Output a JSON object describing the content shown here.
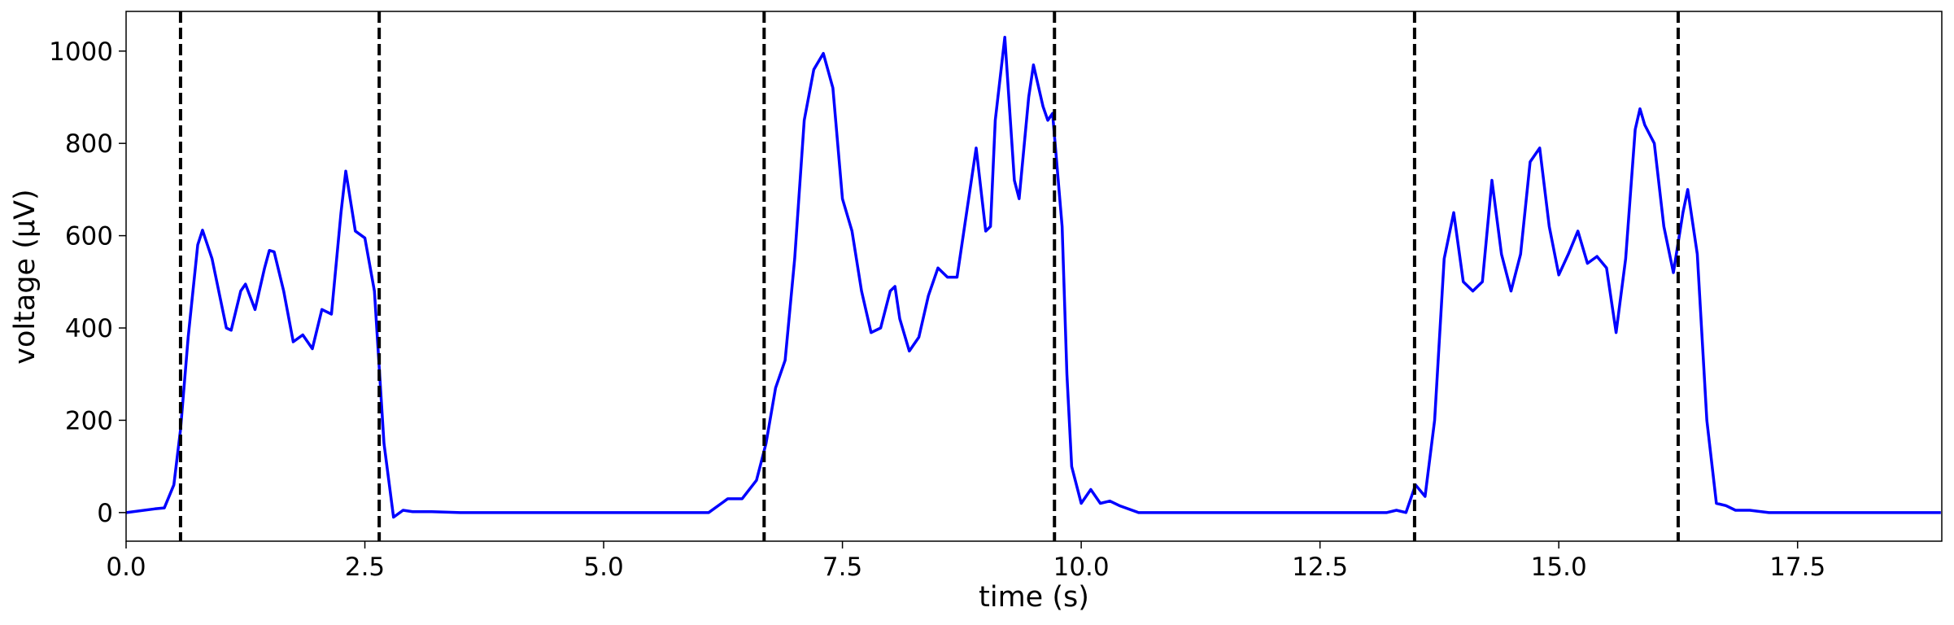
{
  "chart_data": {
    "type": "line",
    "xlabel": "time (s)",
    "ylabel": "voltage (μV)",
    "xlim": [
      0,
      19.01
    ],
    "ylim": [
      -62,
      1086
    ],
    "xticks": [
      {
        "value": 0,
        "label": "0.0"
      },
      2.5,
      {
        "value": 5,
        "label": "5.0"
      },
      7.5,
      {
        "value": 10,
        "label": "10.0"
      },
      12.5,
      {
        "value": 15,
        "label": "15.0"
      },
      17.5
    ],
    "yticks": [
      0,
      200,
      400,
      600,
      800,
      1000
    ],
    "vlines": [
      0.57,
      2.65,
      6.68,
      9.72,
      13.49,
      16.25
    ],
    "vline_color": "#000000",
    "series": [
      {
        "color": "#0000ff",
        "x": [
          0,
          0.3,
          0.4,
          0.5,
          0.57,
          0.65,
          0.75,
          0.8,
          0.9,
          1.0,
          1.05,
          1.1,
          1.2,
          1.25,
          1.35,
          1.45,
          1.5,
          1.55,
          1.65,
          1.75,
          1.85,
          1.95,
          2.05,
          2.15,
          2.25,
          2.3,
          2.4,
          2.5,
          2.6,
          2.7,
          2.8,
          2.9,
          3.0,
          3.2,
          3.5,
          5.0,
          6.1,
          6.3,
          6.45,
          6.6,
          6.7,
          6.8,
          6.9,
          7.0,
          7.1,
          7.2,
          7.3,
          7.4,
          7.5,
          7.6,
          7.7,
          7.8,
          7.9,
          8.0,
          8.05,
          8.1,
          8.2,
          8.3,
          8.4,
          8.5,
          8.6,
          8.7,
          8.8,
          8.9,
          9.0,
          9.05,
          9.1,
          9.2,
          9.3,
          9.35,
          9.45,
          9.5,
          9.6,
          9.65,
          9.7,
          9.8,
          9.85,
          9.9,
          10.0,
          10.1,
          10.2,
          10.3,
          10.4,
          10.6,
          13.2,
          13.3,
          13.4,
          13.5,
          13.6,
          13.7,
          13.8,
          13.9,
          14.0,
          14.1,
          14.2,
          14.3,
          14.4,
          14.5,
          14.6,
          14.7,
          14.8,
          14.9,
          15.0,
          15.1,
          15.2,
          15.3,
          15.4,
          15.5,
          15.6,
          15.7,
          15.8,
          15.85,
          15.9,
          16.0,
          16.1,
          16.2,
          16.3,
          16.35,
          16.45,
          16.55,
          16.65,
          16.75,
          16.85,
          17.0,
          17.2,
          19.0
        ],
        "values": [
          0,
          8,
          10,
          60,
          180,
          380,
          580,
          612,
          550,
          450,
          400,
          395,
          480,
          495,
          440,
          530,
          568,
          565,
          480,
          370,
          385,
          355,
          440,
          430,
          650,
          740,
          610,
          595,
          480,
          150,
          -10,
          5,
          2,
          2,
          0,
          0,
          0,
          30,
          30,
          70,
          150,
          270,
          330,
          550,
          850,
          960,
          995,
          920,
          680,
          610,
          480,
          390,
          400,
          480,
          490,
          420,
          350,
          380,
          470,
          530,
          510,
          510,
          650,
          790,
          610,
          620,
          850,
          1030,
          720,
          680,
          900,
          970,
          880,
          850,
          865,
          620,
          300,
          100,
          20,
          50,
          20,
          25,
          15,
          0,
          0,
          5,
          0,
          60,
          35,
          200,
          550,
          650,
          500,
          480,
          500,
          720,
          560,
          480,
          560,
          760,
          790,
          620,
          515,
          560,
          610,
          540,
          555,
          530,
          390,
          550,
          830,
          875,
          840,
          800,
          620,
          520,
          650,
          700,
          560,
          200,
          20,
          15,
          5,
          5,
          0,
          0
        ]
      }
    ]
  }
}
